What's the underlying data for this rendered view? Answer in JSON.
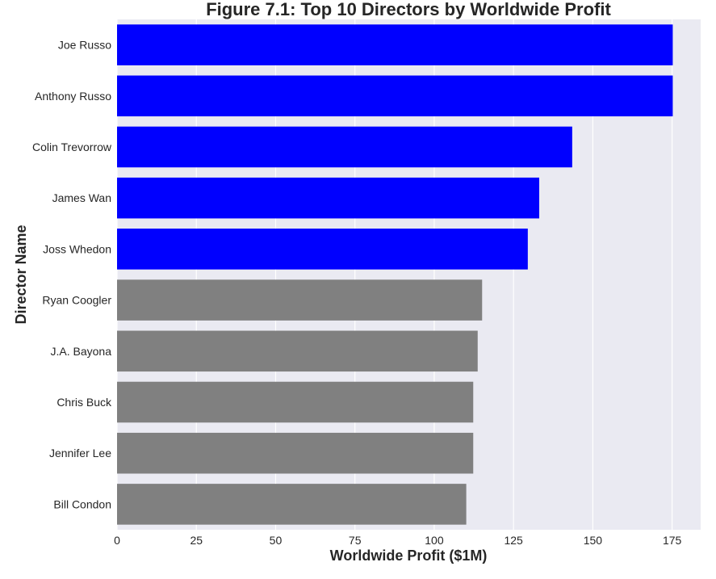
{
  "chart_data": {
    "type": "bar",
    "orientation": "horizontal",
    "title": "Figure 7.1: Top 10 Directors by Worldwide Profit",
    "xlabel": "Worldwide Profit ($1M)",
    "ylabel": "Director Name",
    "categories": [
      "Joe Russo",
      "Anthony Russo",
      "Colin Trevorrow",
      "James Wan",
      "Joss Whedon",
      "Ryan Coogler",
      "J.A. Bayona",
      "Chris Buck",
      "Jennifer Lee",
      "Bill Condon"
    ],
    "values": [
      175.2,
      175.2,
      143.5,
      133.1,
      129.5,
      115.1,
      113.7,
      112.3,
      112.3,
      110.1
    ],
    "bar_colors": [
      "#0000ff",
      "#0000ff",
      "#0000ff",
      "#0000ff",
      "#0000ff",
      "#808080",
      "#808080",
      "#808080",
      "#808080",
      "#808080"
    ],
    "xlim": [
      0,
      184
    ],
    "xticks": [
      0,
      25,
      50,
      75,
      100,
      125,
      150,
      175
    ],
    "grid": true,
    "background_color": "#eaeaf2",
    "grid_color": "#ffffff"
  }
}
